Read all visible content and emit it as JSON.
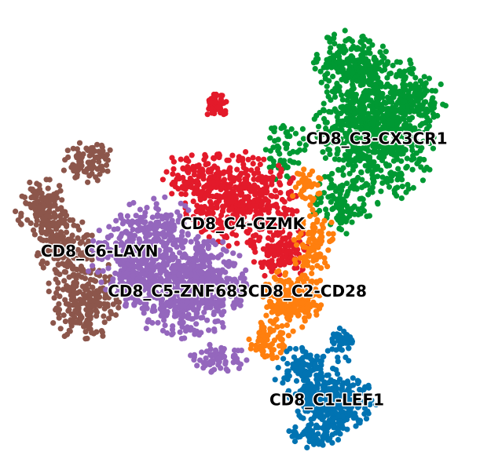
{
  "chart_data": {
    "type": "scatter",
    "title": "",
    "xlabel": "",
    "ylabel": "",
    "axes_visible": false,
    "grid": false,
    "legend": "none",
    "xlim": [
      0,
      100
    ],
    "ylim": [
      0,
      100
    ],
    "series": [
      {
        "label": "CD8_C3-CX3CR1",
        "color": "#009933",
        "label_pos": [
          79.5,
          71
        ],
        "regions": [
          {
            "cx": 79,
            "cy": 74,
            "rx": 12,
            "ry": 15,
            "n": 750
          },
          {
            "cx": 74,
            "cy": 88,
            "rx": 7,
            "ry": 6,
            "n": 160
          },
          {
            "cx": 72,
            "cy": 57,
            "rx": 6,
            "ry": 6,
            "n": 110
          },
          {
            "cx": 88,
            "cy": 80,
            "rx": 6,
            "ry": 6,
            "n": 110
          },
          {
            "cx": 60,
            "cy": 68,
            "rx": 4,
            "ry": 7,
            "n": 60
          }
        ]
      },
      {
        "label": "CD8_C4-GZMK",
        "color": "#e31a2a",
        "label_pos": [
          50.5,
          52.3
        ],
        "regions": [
          {
            "cx": 50,
            "cy": 58,
            "rx": 11,
            "ry": 9,
            "n": 440
          },
          {
            "cx": 59,
            "cy": 46,
            "rx": 6,
            "ry": 5,
            "n": 120
          },
          {
            "cx": 45,
            "cy": 79,
            "rx": 2.5,
            "ry": 3,
            "n": 45
          },
          {
            "cx": 40,
            "cy": 63,
            "rx": 6,
            "ry": 5,
            "n": 90
          }
        ]
      },
      {
        "label": "CD8_C6-LAYN",
        "color": "#8c564b",
        "label_pos": [
          19.5,
          46.3
        ],
        "regions": [
          {
            "cx": 7,
            "cy": 56,
            "rx": 5,
            "ry": 6,
            "n": 130
          },
          {
            "cx": 16,
            "cy": 36,
            "rx": 7,
            "ry": 9,
            "n": 210
          },
          {
            "cx": 17,
            "cy": 66,
            "rx": 5,
            "ry": 4,
            "n": 90
          },
          {
            "cx": 12,
            "cy": 48,
            "rx": 6,
            "ry": 6,
            "n": 130
          }
        ]
      },
      {
        "label": "CD8_C5-ZNF683",
        "color": "#9467bd",
        "label_pos": [
          36.5,
          37.5
        ],
        "regions": [
          {
            "cx": 38,
            "cy": 39,
            "rx": 12,
            "ry": 10,
            "n": 700
          },
          {
            "cx": 26,
            "cy": 45,
            "rx": 8,
            "ry": 9,
            "n": 240
          },
          {
            "cx": 45,
            "cy": 23,
            "rx": 6,
            "ry": 3,
            "n": 70
          },
          {
            "cx": 32,
            "cy": 52,
            "rx": 7,
            "ry": 6,
            "n": 120
          }
        ]
      },
      {
        "label": "CD8_C2-CD28",
        "color": "#ff7f0e",
        "label_pos": [
          64.5,
          37.5
        ],
        "regions": [
          {
            "cx": 61,
            "cy": 36,
            "rx": 6,
            "ry": 6,
            "n": 220
          },
          {
            "cx": 66,
            "cy": 48,
            "rx": 4,
            "ry": 7,
            "n": 100
          },
          {
            "cx": 56,
            "cy": 27,
            "rx": 4,
            "ry": 4,
            "n": 70
          },
          {
            "cx": 64,
            "cy": 61,
            "rx": 3,
            "ry": 4,
            "n": 40
          }
        ]
      },
      {
        "label": "CD8_C1-LEF1",
        "color": "#0173b2",
        "label_pos": [
          68.7,
          13.6
        ],
        "regions": [
          {
            "cx": 70,
            "cy": 13,
            "rx": 8,
            "ry": 6,
            "n": 300
          },
          {
            "cx": 64,
            "cy": 20,
            "rx": 6,
            "ry": 5,
            "n": 110
          },
          {
            "cx": 72,
            "cy": 26,
            "rx": 3,
            "ry": 4,
            "n": 45
          },
          {
            "cx": 66,
            "cy": 6,
            "rx": 5,
            "ry": 2.5,
            "n": 60
          }
        ]
      }
    ]
  }
}
